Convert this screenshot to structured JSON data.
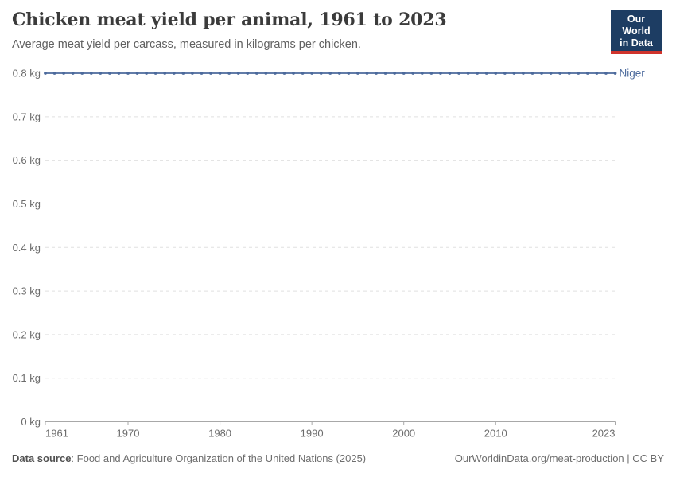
{
  "header": {
    "title": "Chicken meat yield per animal, 1961 to 2023",
    "subtitle": "Average meat yield per carcass, measured in kilograms per chicken.",
    "logo_line1": "Our World",
    "logo_line2": "in Data"
  },
  "footer": {
    "source_label": "Data source",
    "source_rest": ": Food and Agriculture Organization of the United Nations (2025)",
    "url": "OurWorldinData.org/meat-production",
    "divider": " | ",
    "license": "CC BY"
  },
  "colors": {
    "series_blue": "#4c6a9c",
    "gridline": "#e0e0e0",
    "axis_line": "#a8a8a8",
    "axis_text": "#6b6b6b",
    "title_text": "#3b3b3b",
    "logo_bg": "#1d3d63",
    "logo_red": "#d0342c"
  },
  "chart_data": {
    "type": "line",
    "title": "Chicken meat yield per animal, 1961 to 2023",
    "subtitle": "Average meat yield per carcass, measured in kilograms per chicken.",
    "unit": "kg",
    "grid": "horizontal-dashed",
    "legend_position": "end-of-line-label",
    "xlim": [
      1961,
      2023
    ],
    "ylim": [
      0,
      0.8
    ],
    "x": [
      1961,
      1962,
      1963,
      1964,
      1965,
      1966,
      1967,
      1968,
      1969,
      1970,
      1971,
      1972,
      1973,
      1974,
      1975,
      1976,
      1977,
      1978,
      1979,
      1980,
      1981,
      1982,
      1983,
      1984,
      1985,
      1986,
      1987,
      1988,
      1989,
      1990,
      1991,
      1992,
      1993,
      1994,
      1995,
      1996,
      1997,
      1998,
      1999,
      2000,
      2001,
      2002,
      2003,
      2004,
      2005,
      2006,
      2007,
      2008,
      2009,
      2010,
      2011,
      2012,
      2013,
      2014,
      2015,
      2016,
      2017,
      2018,
      2019,
      2020,
      2021,
      2022,
      2023
    ],
    "series": [
      {
        "name": "Niger",
        "color": "#4c6a9c",
        "values": [
          0.8,
          0.8,
          0.8,
          0.8,
          0.8,
          0.8,
          0.8,
          0.8,
          0.8,
          0.8,
          0.8,
          0.8,
          0.8,
          0.8,
          0.8,
          0.8,
          0.8,
          0.8,
          0.8,
          0.8,
          0.8,
          0.8,
          0.8,
          0.8,
          0.8,
          0.8,
          0.8,
          0.8,
          0.8,
          0.8,
          0.8,
          0.8,
          0.8,
          0.8,
          0.8,
          0.8,
          0.8,
          0.8,
          0.8,
          0.8,
          0.8,
          0.8,
          0.8,
          0.8,
          0.8,
          0.8,
          0.8,
          0.8,
          0.8,
          0.8,
          0.8,
          0.8,
          0.8,
          0.8,
          0.8,
          0.8,
          0.8,
          0.8,
          0.8,
          0.8,
          0.8,
          0.8,
          0.8
        ]
      }
    ],
    "yticks": {
      "values": [
        0,
        0.1,
        0.2,
        0.3,
        0.4,
        0.5,
        0.6,
        0.7,
        0.8
      ],
      "labels": [
        "0 kg",
        "0.1 kg",
        "0.2 kg",
        "0.3 kg",
        "0.4 kg",
        "0.5 kg",
        "0.6 kg",
        "0.7 kg",
        "0.8 kg"
      ]
    },
    "xticks": {
      "values": [
        1961,
        1970,
        1980,
        1990,
        2000,
        2010,
        2023
      ],
      "labels": [
        "1961",
        "1970",
        "1980",
        "1990",
        "2000",
        "2010",
        "2023"
      ]
    }
  }
}
